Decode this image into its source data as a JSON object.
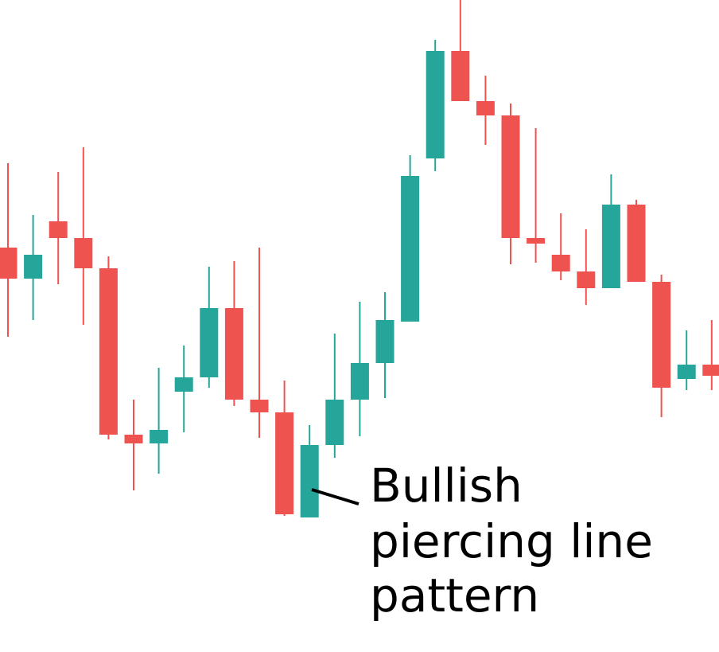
{
  "chart_data": {
    "type": "candlestick",
    "open": [
      508,
      469,
      541,
      520,
      482,
      273,
      262,
      327,
      345,
      432,
      317,
      301,
      169,
      260,
      317,
      363,
      415,
      620,
      755,
      692,
      674,
      520,
      499,
      478,
      457,
      562,
      465,
      343,
      361
    ],
    "high": [
      614,
      549,
      603,
      634,
      497,
      317,
      357,
      385,
      484,
      491,
      508,
      341,
      285,
      400,
      440,
      452,
      624,
      769,
      819,
      724,
      689,
      658,
      551,
      531,
      600,
      568,
      474,
      404,
      417
    ],
    "low": [
      396,
      417,
      462,
      411,
      267,
      203,
      224,
      276,
      332,
      309,
      269,
      171,
      169,
      244,
      271,
      319,
      415,
      604,
      692,
      637,
      487,
      489,
      467,
      436,
      457,
      465,
      295,
      329,
      329
    ],
    "close": [
      469,
      499,
      520,
      482,
      273,
      262,
      279,
      345,
      432,
      317,
      301,
      173,
      260,
      317,
      363,
      417,
      598,
      755,
      692,
      674,
      520,
      513,
      478,
      457,
      562,
      465,
      332,
      361,
      347
    ],
    "up_color": "#26a69a",
    "down_color": "#ef5350",
    "ylim": [
      0,
      819
    ],
    "annotation": [
      "Bullish",
      "piercing line",
      "pattern"
    ]
  }
}
